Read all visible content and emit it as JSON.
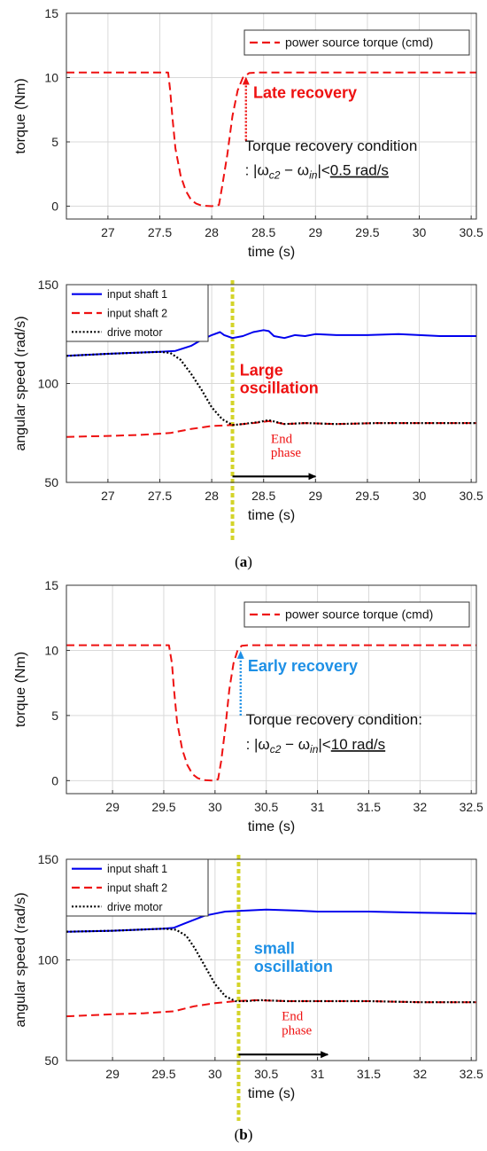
{
  "colors": {
    "input_shaft_1": "#0000ee",
    "input_shaft_2": "#ee1111",
    "drive_motor": "#000000",
    "torque": "#ee1111",
    "phase_marker": "#d4d42a",
    "late_annotation": "#ee1111",
    "early_annotation": "#1e90e6",
    "grid": "#d9d9d9"
  },
  "panels": [
    {
      "label_open": "(",
      "label_letter": "a",
      "label_close": ")"
    },
    {
      "label_open": "(",
      "label_letter": "b",
      "label_close": ")"
    }
  ],
  "chart_data": [
    {
      "type": "line",
      "panel": "a",
      "xlabel": "time (s)",
      "ylabel": "torque (Nm)",
      "xlim": [
        26.6,
        30.55
      ],
      "ylim": [
        -1,
        15
      ],
      "xticks": [
        27,
        27.5,
        28,
        28.5,
        29,
        29.5,
        30,
        30.5
      ],
      "xtick_labels": [
        "27",
        "27.5",
        "28",
        "28.5",
        "29",
        "29.5",
        "30",
        "30.5"
      ],
      "yticks": [
        0,
        5,
        10,
        15
      ],
      "ytick_labels": [
        "0",
        "5",
        "10",
        "15"
      ],
      "grid": true,
      "legend_position": "top-right",
      "series": [
        {
          "name": "power source torque (cmd)",
          "style": "dashed",
          "color_key": "torque",
          "x": [
            26.6,
            27.58,
            27.6,
            27.62,
            27.65,
            27.7,
            27.75,
            27.8,
            27.85,
            27.9,
            28.0,
            28.07,
            28.1,
            28.15,
            28.2,
            28.25,
            28.3,
            28.36,
            28.45,
            30.55
          ],
          "y": [
            10.4,
            10.4,
            9.0,
            7.0,
            4.5,
            2.4,
            1.2,
            0.5,
            0.2,
            0.05,
            0,
            0.1,
            1.5,
            4.0,
            7.0,
            9.0,
            10.0,
            10.35,
            10.4,
            10.4
          ]
        }
      ],
      "annotations": [
        {
          "text": "Late recovery",
          "color_key": "late_annotation",
          "bold": true,
          "x": 28.4,
          "y": 8.4
        },
        {
          "text": "Torque recovery condition",
          "x": 28.32,
          "y": 4.3
        },
        {
          "text_prefix": ": |ω",
          "sub1": "c2",
          "text_mid": " − ω",
          "sub2": "in",
          "text_mid2": "|<",
          "text_underlined": "0.5 rad/s",
          "x": 28.32,
          "y": 2.4
        }
      ],
      "arrow": {
        "style": "dotted",
        "color_key": "late_annotation",
        "x": 28.33,
        "y_from": 5.1,
        "y_to": 10.0
      }
    },
    {
      "type": "line",
      "panel": "a",
      "xlabel": "time (s)",
      "ylabel": "angular speed (rad/s)",
      "xlim": [
        26.6,
        30.55
      ],
      "ylim": [
        50,
        150
      ],
      "xticks": [
        27,
        27.5,
        28,
        28.5,
        29,
        29.5,
        30,
        30.5
      ],
      "xtick_labels": [
        "27",
        "27.5",
        "28",
        "28.5",
        "29",
        "29.5",
        "30",
        "30.5"
      ],
      "yticks": [
        50,
        100,
        150
      ],
      "ytick_labels": [
        "50",
        "100",
        "150"
      ],
      "grid": true,
      "legend_position": "top-left",
      "series": [
        {
          "name": "input shaft 1",
          "style": "solid",
          "color_key": "input_shaft_1",
          "x": [
            26.6,
            27.0,
            27.5,
            27.65,
            27.8,
            27.9,
            28.0,
            28.08,
            28.12,
            28.2,
            28.3,
            28.4,
            28.5,
            28.55,
            28.6,
            28.7,
            28.8,
            28.9,
            29.0,
            29.2,
            29.5,
            29.8,
            30.0,
            30.2,
            30.55
          ],
          "y": [
            114,
            115,
            116,
            116.5,
            119,
            122,
            124.5,
            126,
            124.5,
            123,
            124,
            126,
            127,
            126.5,
            124,
            123,
            124.5,
            124,
            125,
            124.5,
            124.5,
            125,
            124.5,
            124,
            124
          ]
        },
        {
          "name": "input shaft 2",
          "style": "dashed",
          "color_key": "input_shaft_2",
          "x": [
            26.6,
            27.0,
            27.3,
            27.6,
            27.8,
            28.0,
            28.2,
            28.4,
            28.55,
            28.7,
            28.9,
            29.2,
            29.6,
            30.0,
            30.55
          ],
          "y": [
            73,
            73.5,
            74,
            75,
            77,
            78.5,
            79,
            80,
            81,
            79.5,
            80,
            79.5,
            80,
            80,
            80
          ]
        },
        {
          "name": "drive motor",
          "style": "dotted",
          "color_key": "drive_motor",
          "x": [
            26.6,
            27.0,
            27.5,
            27.6,
            27.7,
            27.8,
            27.9,
            28.0,
            28.1,
            28.2,
            28.3,
            28.45,
            28.55,
            28.7,
            28.9,
            29.2,
            29.6,
            30.0,
            30.55
          ],
          "y": [
            114,
            115,
            116,
            115.5,
            112,
            105,
            97,
            88,
            82,
            79,
            79.5,
            80.5,
            81.5,
            79.5,
            80,
            79.5,
            80,
            80,
            80
          ]
        }
      ],
      "annotations": [
        {
          "text": "Large",
          "color_key": "late_annotation",
          "bold": true,
          "x": 28.27,
          "y": 104
        },
        {
          "text": "oscillation",
          "color_key": "late_annotation",
          "bold": true,
          "x": 28.27,
          "y": 95
        },
        {
          "text": "End",
          "color_key": "late_annotation",
          "serif": true,
          "x": 28.57,
          "y": 70
        },
        {
          "text": "phase",
          "color_key": "late_annotation",
          "serif": true,
          "x": 28.57,
          "y": 63
        }
      ],
      "vertical_line": {
        "x": 28.2,
        "color_key": "phase_marker"
      },
      "arrow": {
        "style": "solid",
        "color_key": "drive_motor",
        "x_from": 28.2,
        "x_to": 29.0,
        "y": 53
      }
    },
    {
      "type": "line",
      "panel": "b",
      "xlabel": "time (s)",
      "ylabel": "torque (Nm)",
      "xlim": [
        28.55,
        32.55
      ],
      "ylim": [
        -1,
        15
      ],
      "xticks": [
        29,
        29.5,
        30,
        30.5,
        31,
        31.5,
        32,
        32.5
      ],
      "xtick_labels": [
        "29",
        "29.5",
        "30",
        "30.5",
        "31",
        "31.5",
        "32",
        "32.5"
      ],
      "yticks": [
        0,
        5,
        10,
        15
      ],
      "ytick_labels": [
        "0",
        "5",
        "10",
        "15"
      ],
      "grid": true,
      "legend_position": "top-right",
      "series": [
        {
          "name": "power source torque (cmd)",
          "style": "dashed",
          "color_key": "torque",
          "x": [
            28.55,
            29.55,
            29.58,
            29.6,
            29.63,
            29.68,
            29.73,
            29.78,
            29.83,
            29.88,
            29.98,
            30.03,
            30.06,
            30.1,
            30.14,
            30.18,
            30.22,
            30.26,
            30.32,
            32.55
          ],
          "y": [
            10.4,
            10.4,
            9.0,
            7.0,
            4.5,
            2.4,
            1.2,
            0.5,
            0.2,
            0.05,
            0,
            0.1,
            1.5,
            4.0,
            7.0,
            9.0,
            10.0,
            10.35,
            10.4,
            10.4
          ]
        }
      ],
      "annotations": [
        {
          "text": "Early recovery",
          "color_key": "early_annotation",
          "bold": true,
          "x": 30.32,
          "y": 8.4
        },
        {
          "text": "Torque recovery condition:",
          "x": 30.3,
          "y": 4.3
        },
        {
          "text_prefix": ": |ω",
          "sub1": "c2",
          "text_mid": " − ω",
          "sub2": "in",
          "text_mid2": "|<",
          "text_underlined": "10 rad/s",
          "x": 30.3,
          "y": 2.4
        }
      ],
      "arrow": {
        "style": "dotted",
        "color_key": "early_annotation",
        "x": 30.25,
        "y_from": 5.0,
        "y_to": 9.9
      }
    },
    {
      "type": "line",
      "panel": "b",
      "xlabel": "time (s)",
      "ylabel": "angular speed (rad/s)",
      "xlim": [
        28.55,
        32.55
      ],
      "ylim": [
        50,
        150
      ],
      "xticks": [
        29,
        29.5,
        30,
        30.5,
        31,
        31.5,
        32,
        32.5
      ],
      "xtick_labels": [
        "29",
        "29.5",
        "30",
        "30.5",
        "31",
        "31.5",
        "32",
        "32.5"
      ],
      "yticks": [
        50,
        100,
        150
      ],
      "ytick_labels": [
        "50",
        "100",
        "150"
      ],
      "grid": true,
      "legend_position": "top-left",
      "series": [
        {
          "name": "input shaft 1",
          "style": "solid",
          "color_key": "input_shaft_1",
          "x": [
            28.55,
            29.0,
            29.5,
            29.6,
            29.7,
            29.8,
            29.9,
            30.0,
            30.1,
            30.3,
            30.5,
            30.8,
            31.0,
            31.5,
            32.0,
            32.55
          ],
          "y": [
            114,
            114.5,
            115.5,
            116,
            118,
            120,
            122,
            123,
            124,
            124.5,
            125,
            124.5,
            124,
            124,
            123.5,
            123
          ]
        },
        {
          "name": "input shaft 2",
          "style": "dashed",
          "color_key": "input_shaft_2",
          "x": [
            28.55,
            29.0,
            29.3,
            29.6,
            29.8,
            30.0,
            30.2,
            30.4,
            30.7,
            31.0,
            31.5,
            32.0,
            32.55
          ],
          "y": [
            72,
            73,
            73.5,
            74.5,
            77,
            78.5,
            79.5,
            80,
            79.5,
            79.5,
            79.5,
            79,
            79
          ]
        },
        {
          "name": "drive motor",
          "style": "dotted",
          "color_key": "drive_motor",
          "x": [
            28.55,
            29.0,
            29.5,
            29.62,
            29.72,
            29.8,
            29.9,
            30.0,
            30.1,
            30.2,
            30.3,
            30.45,
            30.7,
            31.0,
            31.5,
            32.0,
            32.55
          ],
          "y": [
            114,
            114.5,
            115.5,
            115,
            112,
            106,
            97,
            88,
            82,
            79.5,
            79.5,
            80,
            79.5,
            79.5,
            79.5,
            79,
            79
          ]
        }
      ],
      "annotations": [
        {
          "text": "small",
          "color_key": "early_annotation",
          "bold": true,
          "x": 30.38,
          "y": 103
        },
        {
          "text": "oscillation",
          "color_key": "early_annotation",
          "bold": true,
          "x": 30.38,
          "y": 94
        },
        {
          "text": "End",
          "color_key": "late_annotation",
          "serif": true,
          "x": 30.65,
          "y": 70
        },
        {
          "text": "phase",
          "color_key": "late_annotation",
          "serif": true,
          "x": 30.65,
          "y": 63
        }
      ],
      "vertical_line": {
        "x": 30.23,
        "color_key": "phase_marker"
      },
      "arrow": {
        "style": "solid",
        "color_key": "drive_motor",
        "x_from": 30.23,
        "x_to": 31.1,
        "y": 53
      }
    }
  ]
}
